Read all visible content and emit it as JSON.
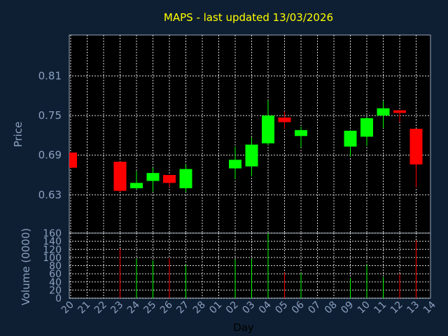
{
  "title": "MAPS - last updated 13/03/2026",
  "colors": {
    "up": "#00ff00",
    "down": "#ff0000",
    "title": "#ffff00",
    "axis_text": "#8aa0c0",
    "background": "#0f1f33",
    "plot_bg": "#000000"
  },
  "chart_data": [
    {
      "type": "candlestick",
      "ylabel": "Price",
      "ylim": [
        0.572,
        0.872
      ],
      "yticks": [
        "0.81",
        "0.75",
        "0.69",
        "0.63"
      ],
      "ytick_values": [
        0.81,
        0.75,
        0.69,
        0.63
      ],
      "grid": true,
      "categories": [
        "20",
        "21",
        "22",
        "23",
        "24",
        "25",
        "26",
        "27",
        "28",
        "01",
        "02",
        "03",
        "04",
        "05",
        "06",
        "07",
        "08",
        "09",
        "10",
        "11",
        "12",
        "13",
        "14"
      ],
      "candles": [
        {
          "day": "20",
          "open": 0.694,
          "close": 0.671,
          "high": 0.694,
          "low": 0.671
        },
        {
          "day": "23",
          "open": 0.68,
          "close": 0.636,
          "high": 0.68,
          "low": 0.634
        },
        {
          "day": "24",
          "open": 0.64,
          "close": 0.648,
          "high": 0.666,
          "low": 0.638
        },
        {
          "day": "25",
          "open": 0.651,
          "close": 0.663,
          "high": 0.671,
          "low": 0.635
        },
        {
          "day": "26",
          "open": 0.66,
          "close": 0.648,
          "high": 0.66,
          "low": 0.642
        },
        {
          "day": "27",
          "open": 0.64,
          "close": 0.669,
          "high": 0.676,
          "low": 0.634
        },
        {
          "day": "02",
          "open": 0.67,
          "close": 0.683,
          "high": 0.703,
          "low": 0.654
        },
        {
          "day": "03",
          "open": 0.673,
          "close": 0.706,
          "high": 0.717,
          "low": 0.658
        },
        {
          "day": "04",
          "open": 0.708,
          "close": 0.75,
          "high": 0.773,
          "low": 0.705
        },
        {
          "day": "05",
          "open": 0.747,
          "close": 0.74,
          "high": 0.756,
          "low": 0.73
        },
        {
          "day": "06",
          "open": 0.719,
          "close": 0.728,
          "high": 0.733,
          "low": 0.702
        },
        {
          "day": "09",
          "open": 0.703,
          "close": 0.727,
          "high": 0.728,
          "low": 0.688
        },
        {
          "day": "10",
          "open": 0.718,
          "close": 0.746,
          "high": 0.748,
          "low": 0.704
        },
        {
          "day": "11",
          "open": 0.75,
          "close": 0.761,
          "high": 0.772,
          "low": 0.731
        },
        {
          "day": "12",
          "open": 0.758,
          "close": 0.754,
          "high": 0.758,
          "low": 0.74
        },
        {
          "day": "13",
          "open": 0.73,
          "close": 0.676,
          "high": 0.73,
          "low": 0.641
        }
      ]
    },
    {
      "type": "bar",
      "ylabel": "Volume (0000)",
      "xlabel": "Day",
      "ylim": [
        0,
        160
      ],
      "yticks": [
        "160",
        "140",
        "120",
        "100",
        "80",
        "60",
        "40",
        "20",
        "0"
      ],
      "ytick_values": [
        160,
        140,
        120,
        100,
        80,
        60,
        40,
        20,
        0
      ],
      "grid": true,
      "categories": [
        "20",
        "21",
        "22",
        "23",
        "24",
        "25",
        "26",
        "27",
        "28",
        "01",
        "02",
        "03",
        "04",
        "05",
        "06",
        "07",
        "08",
        "09",
        "10",
        "11",
        "12",
        "13",
        "14"
      ],
      "bars": [
        {
          "day": "23",
          "value": 122,
          "color": "down"
        },
        {
          "day": "24",
          "value": 97,
          "color": "up"
        },
        {
          "day": "25",
          "value": 93,
          "color": "up"
        },
        {
          "day": "26",
          "value": 98,
          "color": "down"
        },
        {
          "day": "27",
          "value": 82,
          "color": "up"
        },
        {
          "day": "02",
          "value": 95,
          "color": "up"
        },
        {
          "day": "03",
          "value": 97,
          "color": "up"
        },
        {
          "day": "04",
          "value": 160,
          "color": "up"
        },
        {
          "day": "05",
          "value": 63,
          "color": "down"
        },
        {
          "day": "06",
          "value": 62,
          "color": "up"
        },
        {
          "day": "09",
          "value": 50,
          "color": "up"
        },
        {
          "day": "10",
          "value": 82,
          "color": "up"
        },
        {
          "day": "11",
          "value": 52,
          "color": "up"
        },
        {
          "day": "12",
          "value": 60,
          "color": "down"
        },
        {
          "day": "13",
          "value": 142,
          "color": "down"
        }
      ]
    }
  ]
}
